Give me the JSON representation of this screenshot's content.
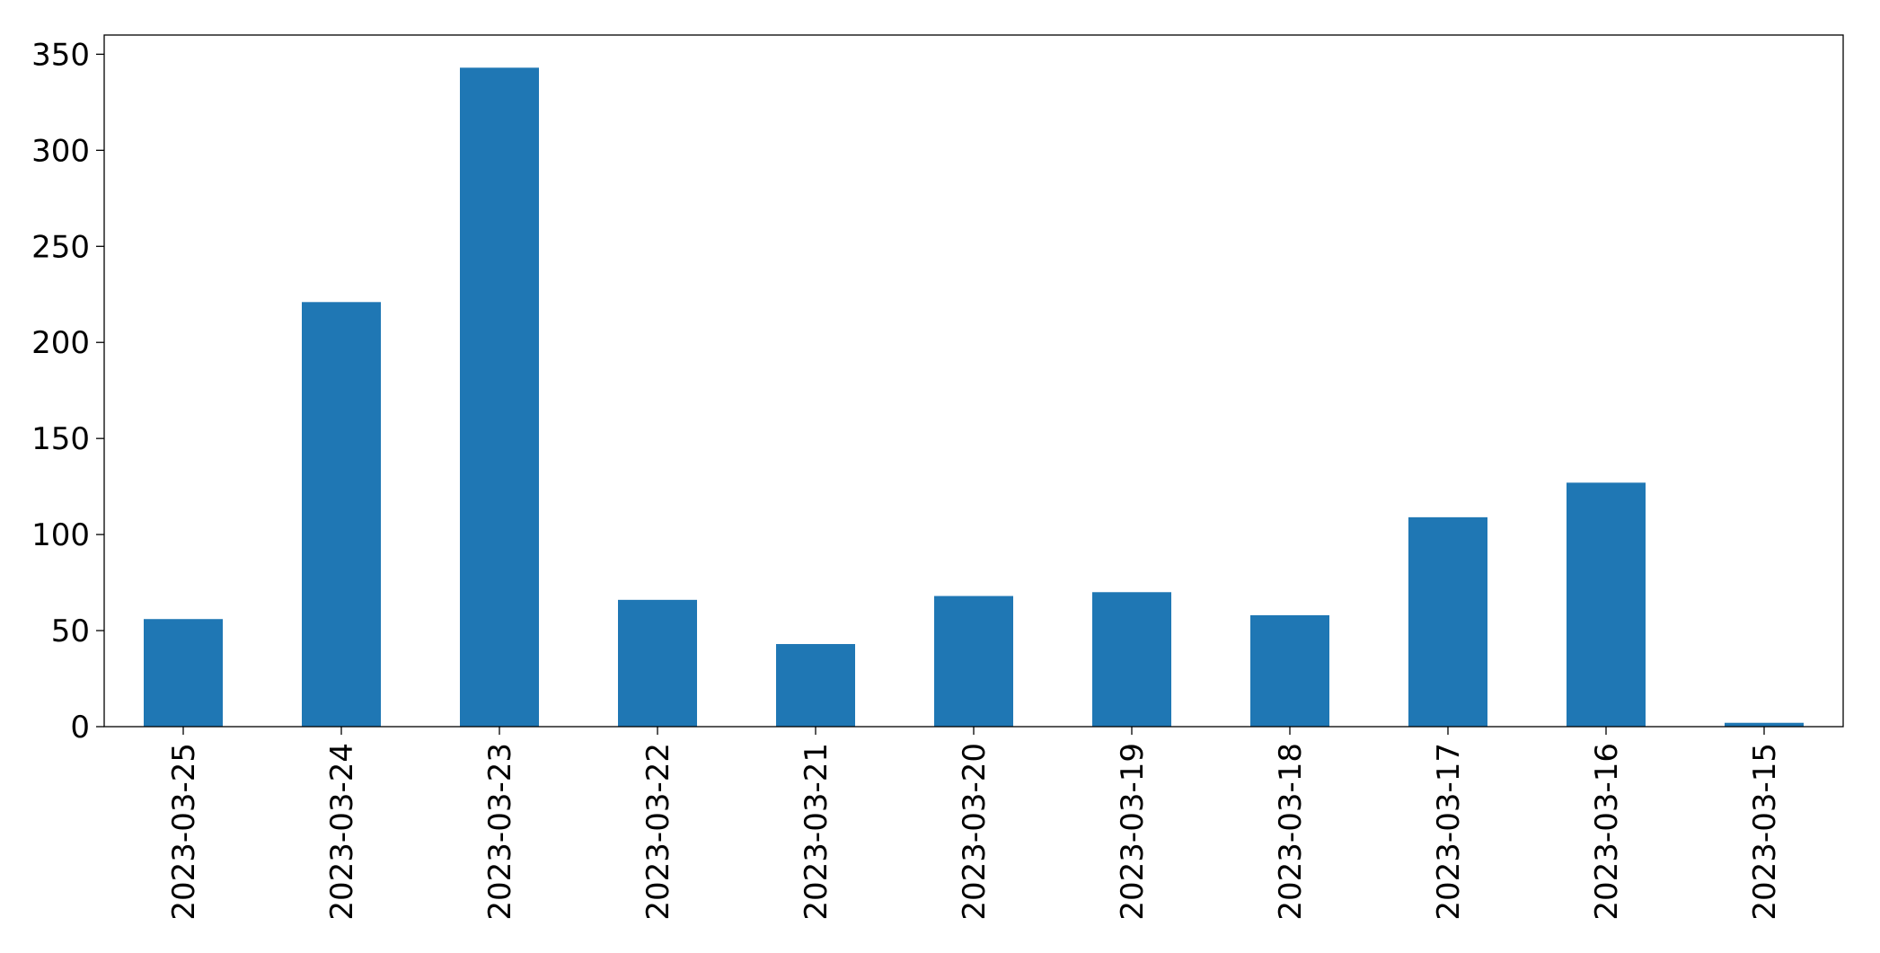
{
  "chart_data": {
    "type": "bar",
    "categories": [
      "2023-03-25",
      "2023-03-24",
      "2023-03-23",
      "2023-03-22",
      "2023-03-21",
      "2023-03-20",
      "2023-03-19",
      "2023-03-18",
      "2023-03-17",
      "2023-03-16",
      "2023-03-15"
    ],
    "values": [
      56,
      221,
      343,
      66,
      43,
      68,
      70,
      58,
      109,
      127,
      2
    ],
    "color": "#1f77b4",
    "ylim": [
      0,
      360
    ],
    "yticks": [
      0,
      50,
      100,
      150,
      200,
      250,
      300,
      350
    ],
    "grid": false
  }
}
